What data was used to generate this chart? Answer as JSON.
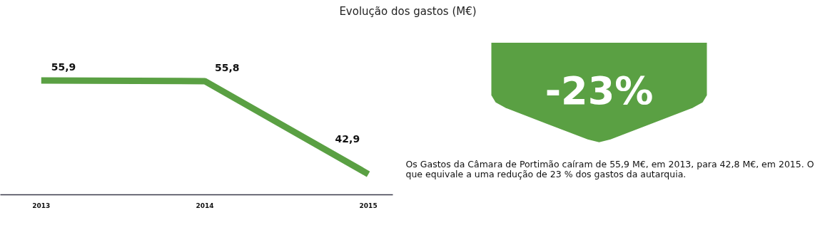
{
  "chart_data": {
    "type": "line",
    "title": "Evolução dos gastos (M€)",
    "categories": [
      "2013",
      "2014",
      "2015"
    ],
    "series": [
      {
        "color": "#5aa043",
        "values": [
          55.9,
          55.8,
          42.9
        ],
        "value_labels": [
          "55,9",
          "55,8",
          "42,9"
        ]
      }
    ],
    "grid": false,
    "marker": "none",
    "line_style": "solid",
    "annotations": [
      "-23%",
      "Os Gastos da Câmara de Portimão caíram de 55,9 M€, em 2013, para 42,8 M€, em 2015. O que equivale a uma redução de 23 % dos gastos da autarquia."
    ]
  }
}
